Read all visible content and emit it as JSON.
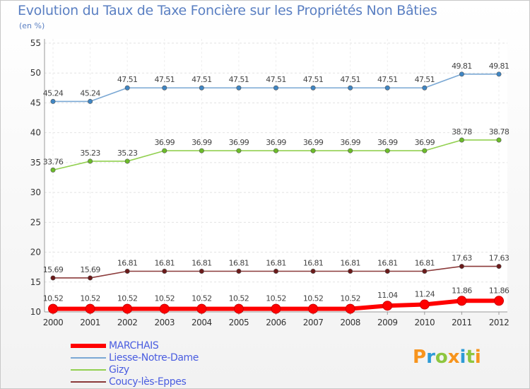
{
  "chart_data": {
    "type": "line",
    "title": "Evolution du Taux de Taxe Foncière sur les Propriétés Non Bâties",
    "ylabel": "(en %)",
    "xlabel": "",
    "categories": [
      "2000",
      "2001",
      "2002",
      "2003",
      "2004",
      "2005",
      "2006",
      "2007",
      "2008",
      "2009",
      "2010",
      "2011",
      "2012"
    ],
    "ylim": [
      10,
      55
    ],
    "yticks": [
      10,
      15,
      20,
      25,
      30,
      35,
      40,
      45,
      50,
      55
    ],
    "grid": true,
    "series": [
      {
        "name": "Liesse-Notre-Dame",
        "color": "#7aa8d4",
        "marker": "#3f86c4",
        "width": "thin",
        "values": [
          45.24,
          45.24,
          47.51,
          47.51,
          47.51,
          47.51,
          47.51,
          47.51,
          47.51,
          47.51,
          47.51,
          49.81,
          49.81
        ],
        "labels": [
          "45.24",
          "45.24",
          "47.51",
          "47.51",
          "47.51",
          "47.51",
          "47.51",
          "47.51",
          "47.51",
          "47.51",
          "47.51",
          "49.81",
          "49.81"
        ]
      },
      {
        "name": "Gizy",
        "color": "#92d050",
        "marker": "#6cbc2a",
        "width": "thin",
        "values": [
          33.76,
          35.23,
          35.23,
          36.99,
          36.99,
          36.99,
          36.99,
          36.99,
          36.99,
          36.99,
          36.99,
          38.78,
          38.78
        ],
        "labels": [
          "33.76",
          "35.23",
          "35.23",
          "36.99",
          "36.99",
          "36.99",
          "36.99",
          "36.99",
          "36.99",
          "36.99",
          "36.99",
          "38.78",
          "38.78"
        ]
      },
      {
        "name": "Coucy-lès-Eppes",
        "color": "#8b3a3a",
        "marker": "#6b1a1a",
        "width": "thin",
        "values": [
          15.69,
          15.69,
          16.81,
          16.81,
          16.81,
          16.81,
          16.81,
          16.81,
          16.81,
          16.81,
          16.81,
          17.63,
          17.63
        ],
        "labels": [
          "15.69",
          "15.69",
          "16.81",
          "16.81",
          "16.81",
          "16.81",
          "16.81",
          "16.81",
          "16.81",
          "16.81",
          "16.81",
          "17.63",
          "17.63"
        ]
      },
      {
        "name": "MARCHAIS",
        "color": "#ff0000",
        "marker": "#ff0000",
        "width": "thick",
        "values": [
          10.52,
          10.52,
          10.52,
          10.52,
          10.52,
          10.52,
          10.52,
          10.52,
          10.52,
          11.04,
          11.24,
          11.86,
          11.86
        ],
        "labels": [
          "10.52",
          "10.52",
          "10.52",
          "10.52",
          "10.52",
          "10.52",
          "10.52",
          "10.52",
          "10.52",
          "11.04",
          "11.24",
          "11.86",
          "11.86"
        ]
      }
    ],
    "legend": [
      "MARCHAIS",
      "Liesse-Notre-Dame",
      "Gizy",
      "Coucy-lès-Eppes"
    ],
    "legend_placement": "bottom-left"
  },
  "logo": {
    "text": "Proxiti",
    "colors": [
      "#f7941d",
      "#2e9bd6",
      "#8dc63f",
      "#f7941d",
      "#2e9bd6",
      "#8dc63f",
      "#f7941d"
    ]
  }
}
